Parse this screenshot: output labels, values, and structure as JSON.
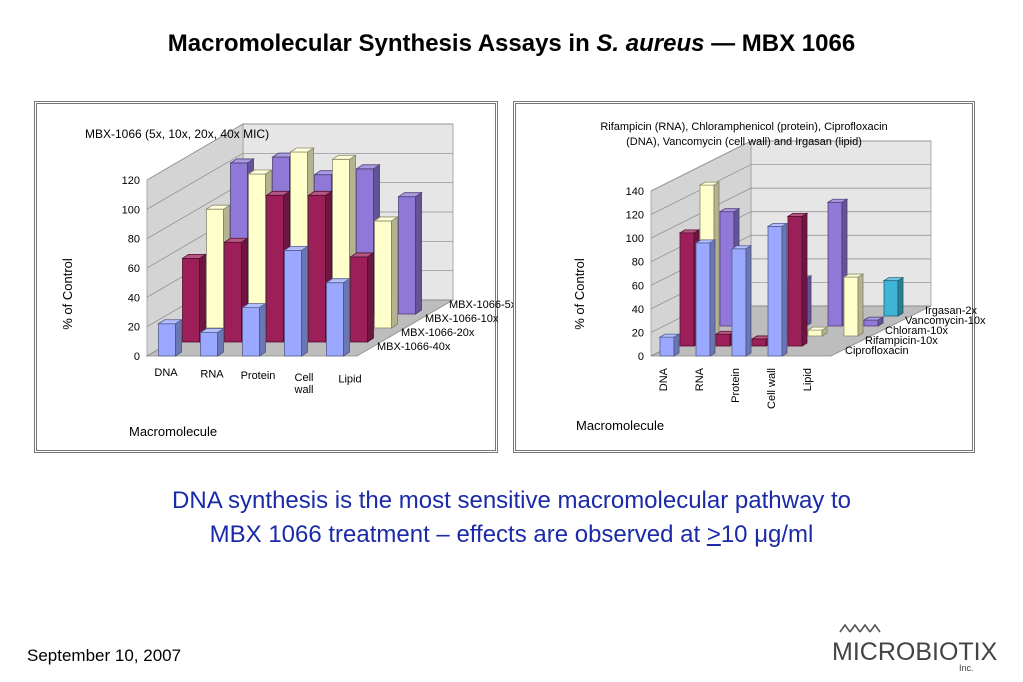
{
  "slide": {
    "title_prefix": "Macromolecular Synthesis Assays in ",
    "title_species": "S. aureus",
    "title_suffix": " — MBX 1066",
    "message_line1": "DNA synthesis is the most sensitive macromolecular pathway to",
    "message_line2_a": "MBX 1066 treatment – effects are observed at ",
    "message_line2_ge": ">",
    "message_line2_b": "10 μg/ml",
    "date": "September 10, 2007",
    "logo_text": "MICROBIOTIX",
    "logo_sub": "Inc."
  },
  "chart_data": [
    {
      "type": "bar",
      "title": "MBX-1066 (5x, 10x, 20x, 40x MIC)",
      "ylabel": "% of Control",
      "xlabel": "Macromolecule",
      "ylim": [
        0,
        120
      ],
      "yticks": [
        0,
        20,
        40,
        60,
        80,
        100,
        120
      ],
      "categories": [
        "DNA",
        "RNA",
        "Protein",
        "Cell\nwall",
        "Lipid"
      ],
      "series": [
        {
          "name": "MBX-1066-5x",
          "color": "#8f78d8",
          "values": [
            103,
            107,
            95,
            99,
            80
          ]
        },
        {
          "name": "MBX-1066-10x",
          "color": "#ffffcc",
          "values": [
            81,
            105,
            120,
            115,
            73
          ]
        },
        {
          "name": "MBX-1066-20x",
          "color": "#9c1f5a",
          "values": [
            57,
            68,
            100,
            100,
            58
          ]
        },
        {
          "name": "MBX-1066-40x",
          "color": "#9aa8ff",
          "values": [
            22,
            16,
            33,
            72,
            50
          ]
        }
      ],
      "legend": "right-depth",
      "grid": true
    },
    {
      "type": "bar",
      "title": "Rifampicin (RNA), Chloramphenicol (protein), Ciprofloxacin (DNA), Vancomycin (cell wall) and Irgasan (lipid)",
      "ylabel": "% of Control",
      "xlabel": "Macromolecule",
      "ylim": [
        0,
        140
      ],
      "yticks": [
        0,
        20,
        40,
        60,
        80,
        100,
        120,
        140
      ],
      "categories": [
        "DNA",
        "RNA",
        "Protein",
        "Cell wall",
        "Lipid"
      ],
      "series": [
        {
          "name": "Irgasan-2x",
          "color": "#3fb4d6",
          "values": [
            0,
            0,
            0,
            0,
            30
          ]
        },
        {
          "name": "Vancomycin-10x",
          "color": "#8f78d8",
          "values": [
            97,
            0,
            40,
            105,
            5
          ]
        },
        {
          "name": "Chloram-10x",
          "color": "#ffffcc",
          "values": [
            128,
            0,
            43,
            5,
            50
          ]
        },
        {
          "name": "Rifampicin-10x",
          "color": "#9c1f5a",
          "values": [
            96,
            10,
            6,
            110,
            0
          ]
        },
        {
          "name": "Ciprofloxacin",
          "color": "#9aa8ff",
          "values": [
            16,
            96,
            91,
            110,
            0
          ]
        }
      ],
      "legend": "right-depth",
      "grid": true
    }
  ]
}
